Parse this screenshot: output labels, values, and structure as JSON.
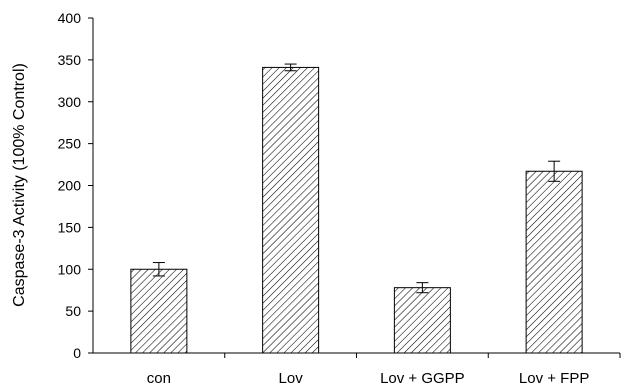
{
  "chart_data": {
    "type": "bar",
    "categories": [
      "con",
      "Lov",
      "Lov + GGPP",
      "Lov + FPP"
    ],
    "values": [
      100,
      341,
      78,
      217
    ],
    "errors": [
      8,
      4,
      6,
      12
    ],
    "ylabel": "Caspase-3 Activity (100% Control)",
    "xlabel": "",
    "ylim": [
      0,
      400
    ],
    "yticks": [
      "0",
      "50",
      "100",
      "150",
      "200",
      "250",
      "300",
      "350",
      "400"
    ],
    "bar_fill": "hatched",
    "colors": {
      "bar_stroke": "#000000",
      "hatch": "#000000",
      "background": "#ffffff"
    },
    "grid": false
  }
}
